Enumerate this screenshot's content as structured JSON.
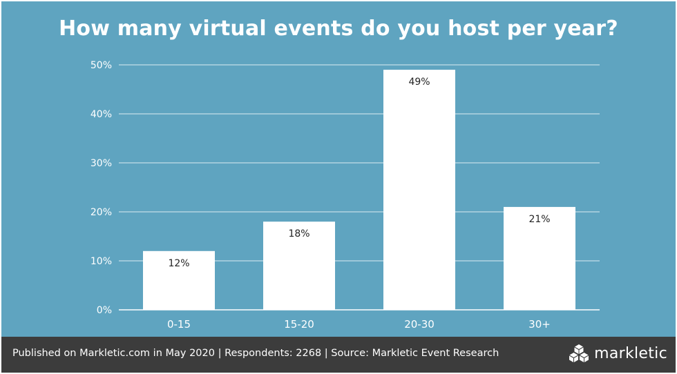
{
  "chart_data": {
    "type": "bar",
    "title": "How many virtual events do you host per year?",
    "categories": [
      "0-15",
      "15-20",
      "20-30",
      "30+"
    ],
    "values": [
      12,
      18,
      49,
      21
    ],
    "value_labels": [
      "12%",
      "18%",
      "49%",
      "21%"
    ],
    "y_ticks": [
      0,
      10,
      20,
      30,
      40,
      50
    ],
    "y_tick_labels": [
      "0%",
      "10%",
      "20%",
      "30%",
      "40%",
      "50%"
    ],
    "ylim": [
      0,
      50
    ],
    "grid": true,
    "legend": "none"
  },
  "footer": {
    "text": "Published on Markletic.com in May 2020 | Respondents: 2268 | Source: Markletic Event Research",
    "brand": "markletic"
  },
  "colors": {
    "background": "#5fa4c0",
    "bar": "#ffffff",
    "gridline": "#dcebf2",
    "footer": "#3c3c3c"
  }
}
